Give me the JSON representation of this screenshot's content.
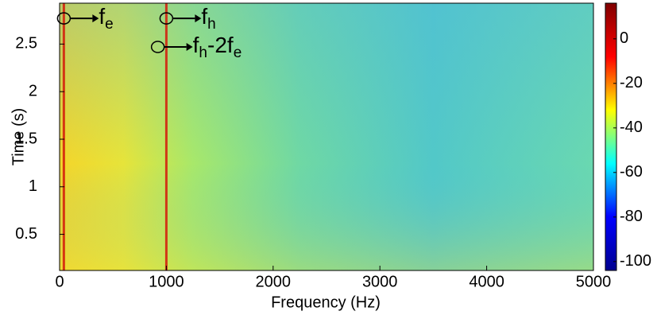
{
  "chart_data": {
    "type": "spectrogram",
    "xlabel": "Frequency (Hz)",
    "ylabel": "Time (s)",
    "xlim": [
      0,
      5000
    ],
    "xticks": [
      0,
      1000,
      2000,
      3000,
      4000,
      5000
    ],
    "ylim": [
      0.12,
      2.93
    ],
    "yticks": [
      0.5,
      1,
      1.5,
      2,
      2.5
    ],
    "clim": [
      -104,
      16
    ],
    "cticks": [
      0,
      -20,
      -40,
      -60,
      -80,
      -100
    ],
    "colormap": [
      "#00008f",
      "#0000ff",
      "#00ffff",
      "#ffff00",
      "#ff0000",
      "#800000"
    ],
    "ridges": {
      "color": "#d41a0a",
      "frequency": [
        40,
        1000
      ]
    },
    "annotations": [
      {
        "x": 40,
        "y": 2.77,
        "parts": [
          "f",
          "e"
        ]
      },
      {
        "x": 1000,
        "y": 2.77,
        "parts": [
          "f",
          "h"
        ]
      },
      {
        "x": 920,
        "y": 2.47,
        "parts": [
          "f",
          "h",
          "-2f",
          "e"
        ]
      }
    ]
  }
}
